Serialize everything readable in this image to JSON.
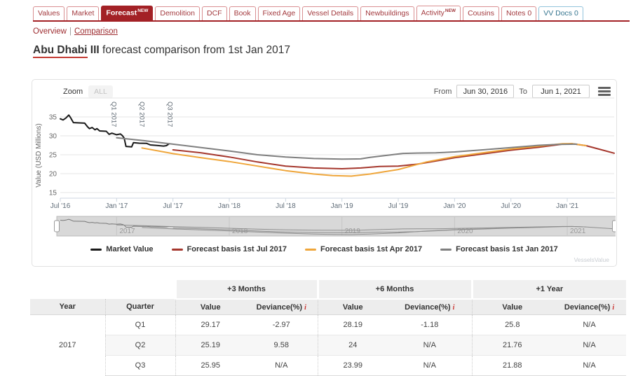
{
  "tabs": [
    {
      "label": "Values"
    },
    {
      "label": "Market"
    },
    {
      "label": "Forecast",
      "badge": "NEW",
      "active": true
    },
    {
      "label": "Demolition"
    },
    {
      "label": "DCF"
    },
    {
      "label": "Book"
    },
    {
      "label": "Fixed Age"
    },
    {
      "label": "Vessel Details"
    },
    {
      "label": "Newbuildings"
    },
    {
      "label": "Activity",
      "badge": "NEW"
    },
    {
      "label": "Cousins"
    },
    {
      "label": "Notes 0"
    },
    {
      "label": "VV Docs 0",
      "style": "info"
    }
  ],
  "subnav": {
    "overview": "Overview",
    "separator": "|",
    "comparison": "Comparison"
  },
  "title": {
    "vessel_underlined": "Abu Dhabi",
    "vessel_rest": " III",
    "rest": " forecast comparison from 1st Jan 2017"
  },
  "chart_panel": {
    "zoom_label": "Zoom",
    "zoom_all_label": "ALL",
    "from_label": "From",
    "from_value": "Jun 30, 2016",
    "to_label": "To",
    "to_value": "Jun 1, 2021",
    "watermark": "VesselsValue"
  },
  "chart_data": {
    "type": "line",
    "x_unit": "months since 1 Jul 2016",
    "y_title": "Value (USD Millions)",
    "ylim": [
      13.5,
      39.8
    ],
    "y_ticks": [
      15,
      20,
      25,
      30,
      35
    ],
    "y_grid_extra": 40,
    "x_ticks": [
      [
        0,
        "Jul '16"
      ],
      [
        6,
        "Jan '17"
      ],
      [
        12,
        "Jul '17"
      ],
      [
        18,
        "Jan '18"
      ],
      [
        24,
        "Jul '18"
      ],
      [
        30,
        "Jan '19"
      ],
      [
        36,
        "Jul '19"
      ],
      [
        42,
        "Jan '20"
      ],
      [
        48,
        "Jul '20"
      ],
      [
        54,
        "Jan '21"
      ]
    ],
    "annotations": [
      [
        6,
        "Q1 2017"
      ],
      [
        9,
        "Q2 2017"
      ],
      [
        12,
        "Q3 2017"
      ]
    ],
    "navigator_years": [
      [
        6,
        "2017"
      ],
      [
        18,
        "2018"
      ],
      [
        30,
        "2019"
      ],
      [
        42,
        "2020"
      ],
      [
        54,
        "2021"
      ]
    ],
    "series": [
      {
        "name": "Market Value",
        "color": "#1a1a1a",
        "points": [
          [
            0,
            34.5
          ],
          [
            0.3,
            34.2
          ],
          [
            0.6,
            34.7
          ],
          [
            0.9,
            35.5
          ],
          [
            1.1,
            34.8
          ],
          [
            1.4,
            33.5
          ],
          [
            2.6,
            33.35
          ],
          [
            2.9,
            32.4
          ],
          [
            3.1,
            31.9
          ],
          [
            3.4,
            32.2
          ],
          [
            3.7,
            31.6
          ],
          [
            3.9,
            31.9
          ],
          [
            4.2,
            31.3
          ],
          [
            4.9,
            31.2
          ],
          [
            5.2,
            30.4
          ],
          [
            5.5,
            30.7
          ],
          [
            6.0,
            30.3
          ],
          [
            6.4,
            30.5
          ],
          [
            6.6,
            30.1
          ],
          [
            6.8,
            29.4
          ],
          [
            7.0,
            27.2
          ],
          [
            7.6,
            27.1
          ],
          [
            7.8,
            28.2
          ],
          [
            8.4,
            28.05
          ],
          [
            9.2,
            28.0
          ],
          [
            9.6,
            27.6
          ],
          [
            10.3,
            27.45
          ],
          [
            11.0,
            27.3
          ],
          [
            11.3,
            27.4
          ],
          [
            11.6,
            27.9
          ]
        ]
      },
      {
        "name": "Forecast basis 1st Jul 2017",
        "color": "#a5372d",
        "points": [
          [
            12,
            26.3
          ],
          [
            15,
            25.5
          ],
          [
            18,
            24.4
          ],
          [
            21,
            23.1
          ],
          [
            24,
            22.0
          ],
          [
            27,
            21.5
          ],
          [
            30,
            21.3
          ],
          [
            32,
            21.5
          ],
          [
            34,
            21.9
          ],
          [
            36,
            22.0
          ],
          [
            38,
            22.5
          ],
          [
            39,
            22.9
          ],
          [
            42,
            24.2
          ],
          [
            45,
            25.2
          ],
          [
            48,
            26.2
          ],
          [
            51,
            27.0
          ],
          [
            53.5,
            27.8
          ],
          [
            54.5,
            27.9
          ],
          [
            56,
            27.4
          ],
          [
            57.5,
            26.4
          ],
          [
            59,
            25.4
          ]
        ]
      },
      {
        "name": "Forecast basis 1st Apr 2017",
        "color": "#efa63b",
        "points": [
          [
            8.7,
            26.8
          ],
          [
            12,
            25.3
          ],
          [
            15,
            24.2
          ],
          [
            18,
            23.2
          ],
          [
            21,
            22.0
          ],
          [
            24,
            20.8
          ],
          [
            27,
            19.9
          ],
          [
            29,
            19.5
          ],
          [
            31,
            19.35
          ],
          [
            33,
            19.9
          ],
          [
            36,
            21.1
          ],
          [
            39,
            23.1
          ],
          [
            42,
            24.5
          ],
          [
            45,
            25.5
          ],
          [
            48,
            26.5
          ],
          [
            51,
            27.3
          ],
          [
            53.5,
            27.9
          ],
          [
            54.5,
            27.95
          ],
          [
            56,
            27.4
          ]
        ]
      },
      {
        "name": "Forecast basis 1st Jan 2017",
        "color": "#7f7f7f",
        "points": [
          [
            6,
            29.5
          ],
          [
            9,
            28.7
          ],
          [
            12,
            27.8
          ],
          [
            15,
            26.9
          ],
          [
            18,
            26.0
          ],
          [
            21,
            25.0
          ],
          [
            24,
            24.4
          ],
          [
            27,
            24.0
          ],
          [
            30,
            23.85
          ],
          [
            32,
            23.9
          ],
          [
            33,
            24.3
          ],
          [
            35,
            24.9
          ],
          [
            36.5,
            25.35
          ],
          [
            38,
            25.45
          ],
          [
            40,
            25.5
          ],
          [
            42,
            25.75
          ],
          [
            45,
            26.3
          ],
          [
            48,
            26.9
          ],
          [
            51,
            27.5
          ],
          [
            53,
            27.75
          ],
          [
            55,
            27.8
          ]
        ]
      }
    ]
  },
  "table": {
    "group_headers": [
      "+3 Months",
      "+6 Months",
      "+1 Year"
    ],
    "year_header": "Year",
    "quarter_header": "Quarter",
    "value_header": "Value",
    "deviance_header": "Deviance(%)",
    "info_mark": "i",
    "rows": [
      {
        "year": "2017",
        "quarters": [
          {
            "quarter": "Q1",
            "cells": [
              "29.17",
              "-2.97",
              "28.19",
              "-1.18",
              "25.8",
              "N/A"
            ]
          },
          {
            "quarter": "Q2",
            "cells": [
              "25.19",
              "9.58",
              "24",
              "N/A",
              "21.76",
              "N/A"
            ]
          },
          {
            "quarter": "Q3",
            "cells": [
              "25.95",
              "N/A",
              "23.99",
              "N/A",
              "21.88",
              "N/A"
            ]
          }
        ]
      }
    ]
  }
}
